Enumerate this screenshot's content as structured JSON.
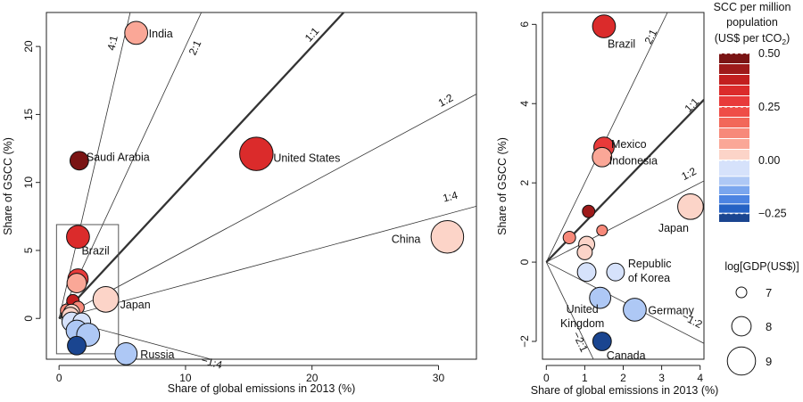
{
  "chart_data": [
    {
      "type": "scatter",
      "xlabel": "Share of global emissions in 2013 (%)",
      "ylabel": "Share of GSCC (%)",
      "xlim": [
        -1,
        33
      ],
      "ylim": [
        -3,
        22.5
      ],
      "xticks": [
        0,
        10,
        20,
        30
      ],
      "yticks": [
        0,
        5,
        10,
        15,
        20
      ],
      "ratio_lines": [
        {
          "label": "4:1",
          "slope": 4
        },
        {
          "label": "2:1",
          "slope": 2
        },
        {
          "label": "1:1",
          "slope": 1,
          "bold": true
        },
        {
          "label": "1:2",
          "slope": 0.5
        },
        {
          "label": "1:4",
          "slope": 0.25
        },
        {
          "label": "−1:4",
          "slope": -0.25
        }
      ],
      "inset_box": {
        "x": [
          -0.2,
          4.7
        ],
        "y": [
          -2.6,
          6.9
        ]
      },
      "points": [
        {
          "label": "India",
          "x": 6.1,
          "y": 21.0,
          "scc": 0.08,
          "gdp": 8.4
        },
        {
          "label": "Saudi Arabia",
          "x": 1.6,
          "y": 11.6,
          "scc": 0.55,
          "gdp": 7.9
        },
        {
          "label": "United States",
          "x": 15.6,
          "y": 12.1,
          "scc": 0.32,
          "gdp": 9.6
        },
        {
          "label": "China",
          "x": 30.7,
          "y": 6.0,
          "scc": 0.02,
          "gdp": 9.5
        },
        {
          "label": "Brazil",
          "x": 1.5,
          "y": 6.0,
          "scc": 0.35,
          "gdp": 8.4
        },
        {
          "label": "Japan",
          "x": 3.7,
          "y": 1.4,
          "scc": 0.05,
          "gdp": 8.7
        },
        {
          "label": "Russia",
          "x": 5.3,
          "y": -2.6,
          "scc": -0.08,
          "gdp": 8.3
        },
        {
          "label": "",
          "x": 1.5,
          "y": 2.9,
          "scc": 0.3,
          "gdp": 8.1
        },
        {
          "label": "",
          "x": 1.4,
          "y": 2.6,
          "scc": 0.08,
          "gdp": 8.0
        },
        {
          "label": "",
          "x": 1.1,
          "y": 1.3,
          "scc": 0.4,
          "gdp": 7.2
        },
        {
          "label": "",
          "x": 0.6,
          "y": 0.6,
          "scc": 0.15,
          "gdp": 7.2
        },
        {
          "label": "",
          "x": 1.5,
          "y": 0.8,
          "scc": 0.15,
          "gdp": 7.2
        },
        {
          "label": "",
          "x": 1.0,
          "y": 0.45,
          "scc": 0.03,
          "gdp": 7.6
        },
        {
          "label": "",
          "x": 0.9,
          "y": 0.2,
          "scc": 0.01,
          "gdp": 7.7
        },
        {
          "label": "",
          "x": 1.0,
          "y": -0.25,
          "scc": 0.0,
          "gdp": 8.0
        },
        {
          "label": "",
          "x": 1.8,
          "y": -0.25,
          "scc": -0.03,
          "gdp": 7.8
        },
        {
          "label": "",
          "x": 1.4,
          "y": -0.9,
          "scc": -0.06,
          "gdp": 8.2
        },
        {
          "label": "",
          "x": 2.3,
          "y": -1.2,
          "scc": -0.08,
          "gdp": 8.4
        },
        {
          "label": "",
          "x": 1.4,
          "y": -2.0,
          "scc": -0.28,
          "gdp": 7.9
        }
      ]
    },
    {
      "type": "scatter",
      "xlabel": "Share of global emissions in 2013 (%)",
      "ylabel": "Share of GSCC (%)",
      "xlim": [
        -0.1,
        4.1
      ],
      "ylim": [
        -2.45,
        6.3
      ],
      "xticks": [
        0,
        1,
        2,
        3,
        4
      ],
      "yticks": [
        -2,
        0,
        2,
        4,
        6
      ],
      "ratio_lines": [
        {
          "label": "2:1",
          "slope": 2
        },
        {
          "label": "1:1",
          "slope": 1,
          "bold": true
        },
        {
          "label": "1:2",
          "slope": 0.5
        },
        {
          "label": "−1:2",
          "slope": -0.5
        },
        {
          "label": "−2:1",
          "slope": -2
        }
      ],
      "points": [
        {
          "label": "Brazil",
          "x": 1.5,
          "y": 5.95,
          "scc": 0.35,
          "gdp": 8.4
        },
        {
          "label": "Mexico",
          "x": 1.5,
          "y": 2.9,
          "scc": 0.3,
          "gdp": 8.1
        },
        {
          "label": "Indonesia",
          "x": 1.45,
          "y": 2.65,
          "scc": 0.08,
          "gdp": 8.0
        },
        {
          "label": "Japan",
          "x": 3.75,
          "y": 1.4,
          "scc": 0.05,
          "gdp": 8.7
        },
        {
          "label": "Republic of Korea",
          "x": 1.8,
          "y": -0.25,
          "scc": -0.03,
          "gdp": 7.8
        },
        {
          "label": "United Kingdom",
          "x": 1.4,
          "y": -0.9,
          "scc": -0.06,
          "gdp": 8.2
        },
        {
          "label": "Germany",
          "x": 2.3,
          "y": -1.2,
          "scc": -0.08,
          "gdp": 8.4
        },
        {
          "label": "Canada",
          "x": 1.45,
          "y": -2.0,
          "scc": -0.28,
          "gdp": 7.9
        },
        {
          "label": "",
          "x": 1.1,
          "y": 1.28,
          "scc": 0.42,
          "gdp": 7.2
        },
        {
          "label": "",
          "x": 0.6,
          "y": 0.62,
          "scc": 0.15,
          "gdp": 7.2
        },
        {
          "label": "",
          "x": 1.45,
          "y": 0.8,
          "scc": 0.15,
          "gdp": 7.0
        },
        {
          "label": "",
          "x": 1.05,
          "y": 0.45,
          "scc": 0.03,
          "gdp": 7.6
        },
        {
          "label": "",
          "x": 1.0,
          "y": 0.25,
          "scc": 0.01,
          "gdp": 7.5
        },
        {
          "label": "",
          "x": 1.05,
          "y": -0.25,
          "scc": 0.0,
          "gdp": 7.9
        }
      ]
    }
  ],
  "legend": {
    "colorbar_title_lines": [
      "SCC per million",
      "population",
      "(US$ per tCO",
      "2",
      ")"
    ],
    "colorbar_ticks": [
      {
        "label": "0.50",
        "value": 0.5
      },
      {
        "label": "0.25",
        "value": 0.25
      },
      {
        "label": "0.00",
        "value": 0.0
      },
      {
        "label": "−0.25",
        "value": -0.25
      }
    ],
    "colorbar_segments": [
      {
        "from": 0.5,
        "to": 0.45,
        "color": "#7a1414"
      },
      {
        "from": 0.45,
        "to": 0.4,
        "color": "#9e1a1a"
      },
      {
        "from": 0.4,
        "to": 0.35,
        "color": "#c21f1f"
      },
      {
        "from": 0.35,
        "to": 0.3,
        "color": "#db2b2b"
      },
      {
        "from": 0.3,
        "to": 0.25,
        "color": "#e83a3a"
      },
      {
        "from": 0.25,
        "to": 0.2,
        "color": "#ef4d47"
      },
      {
        "from": 0.2,
        "to": 0.15,
        "color": "#f26759"
      },
      {
        "from": 0.15,
        "to": 0.1,
        "color": "#f7897a"
      },
      {
        "from": 0.1,
        "to": 0.05,
        "color": "#faa797"
      },
      {
        "from": 0.05,
        "to": 0.0,
        "color": "#fcd4c8"
      },
      {
        "from": 0.0,
        "to": -0.05,
        "color": "#d6e2fb"
      },
      {
        "from": -0.05,
        "to": -0.1,
        "color": "#aec8f5"
      },
      {
        "from": -0.1,
        "to": -0.15,
        "color": "#7aa6ee"
      },
      {
        "from": -0.15,
        "to": -0.2,
        "color": "#4c84e2"
      },
      {
        "from": -0.2,
        "to": -0.25,
        "color": "#2562c4"
      },
      {
        "from": -0.25,
        "to": -0.3,
        "color": "#1a4590"
      }
    ],
    "size_title": "log[GDP(US$)]",
    "size_items": [
      {
        "label": "7",
        "gdp": 7
      },
      {
        "label": "8",
        "gdp": 8
      },
      {
        "label": "9",
        "gdp": 9
      }
    ]
  }
}
